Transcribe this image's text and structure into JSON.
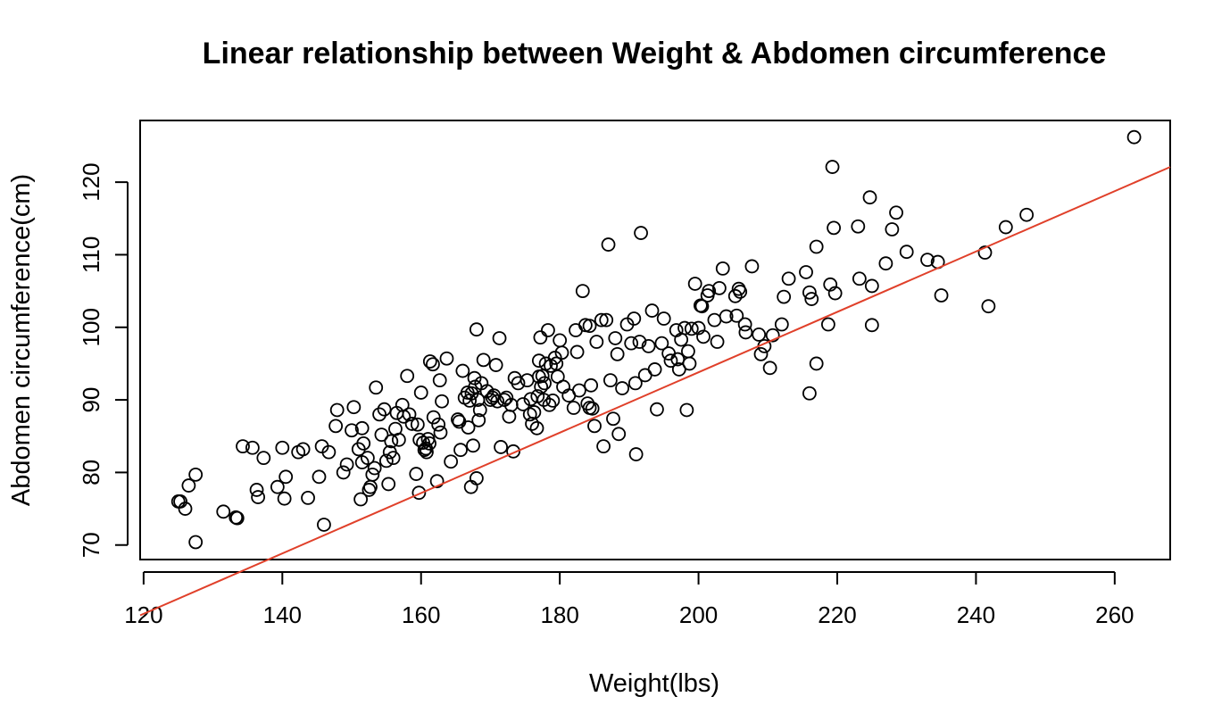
{
  "chart_data": {
    "type": "scatter",
    "title": "Linear relationship between Weight & Abdomen circumference",
    "xlabel": "Weight(lbs)",
    "ylabel": "Abdomen circumference(cm)",
    "xlim": [
      119.5,
      268
    ],
    "ylim": [
      68,
      128.5
    ],
    "xticks": [
      120,
      140,
      160,
      180,
      200,
      220,
      240,
      260
    ],
    "yticks": [
      70,
      80,
      90,
      100,
      110,
      120
    ],
    "grid": false,
    "legend": "none",
    "colors": {
      "points": "#000000",
      "fit_line": "#e0402a"
    },
    "fit_line": {
      "intercept": 10.6,
      "slope": 0.416
    },
    "points": [
      [
        125,
        76
      ],
      [
        125.3,
        76
      ],
      [
        126,
        75
      ],
      [
        126.5,
        78.2
      ],
      [
        127.5,
        79.7
      ],
      [
        127.5,
        70.4
      ],
      [
        131.5,
        74.6
      ],
      [
        133.3,
        73.8
      ],
      [
        133.5,
        73.7
      ],
      [
        134.3,
        83.6
      ],
      [
        135.7,
        83.4
      ],
      [
        136.3,
        77.6
      ],
      [
        136.5,
        76.6
      ],
      [
        137.3,
        82
      ],
      [
        139.3,
        78
      ],
      [
        140,
        83.4
      ],
      [
        140.3,
        76.4
      ],
      [
        140.5,
        79.4
      ],
      [
        142.3,
        82.8
      ],
      [
        143,
        83.2
      ],
      [
        143.7,
        76.5
      ],
      [
        145.3,
        79.4
      ],
      [
        145.7,
        83.6
      ],
      [
        146,
        72.8
      ],
      [
        146.7,
        82.8
      ],
      [
        147.7,
        86.4
      ],
      [
        147.9,
        88.6
      ],
      [
        148.8,
        80
      ],
      [
        149.3,
        81.1
      ],
      [
        150,
        85.8
      ],
      [
        150.3,
        89
      ],
      [
        151,
        83.2
      ],
      [
        151.3,
        76.3
      ],
      [
        151.5,
        81.4
      ],
      [
        151.7,
        84
      ],
      [
        151.5,
        86.1
      ],
      [
        152.3,
        82
      ],
      [
        152.5,
        77.6
      ],
      [
        152.7,
        78
      ],
      [
        153,
        79.7
      ],
      [
        153.3,
        80.6
      ],
      [
        153.5,
        91.7
      ],
      [
        154,
        88
      ],
      [
        154.3,
        85.2
      ],
      [
        154.7,
        88.7
      ],
      [
        155,
        81.6
      ],
      [
        155.3,
        78.4
      ],
      [
        155.5,
        82.8
      ],
      [
        155.7,
        84.3
      ],
      [
        156,
        82
      ],
      [
        156.3,
        86
      ],
      [
        156.5,
        88.2
      ],
      [
        156.8,
        84.5
      ],
      [
        157.3,
        89.3
      ],
      [
        157.5,
        87.7
      ],
      [
        158,
        93.3
      ],
      [
        158.3,
        88
      ],
      [
        158.7,
        86.7
      ],
      [
        159.3,
        79.8
      ],
      [
        159.5,
        86.6
      ],
      [
        159.8,
        84.5
      ],
      [
        159.7,
        77.2
      ],
      [
        160,
        91
      ],
      [
        160.3,
        84.1
      ],
      [
        160.5,
        83.1
      ],
      [
        160.7,
        83.3
      ],
      [
        160.8,
        82.8
      ],
      [
        161,
        84.6
      ],
      [
        161.2,
        84
      ],
      [
        161.3,
        95.3
      ],
      [
        161.7,
        94.9
      ],
      [
        161.8,
        87.6
      ],
      [
        162.3,
        78.8
      ],
      [
        162.5,
        86.6
      ],
      [
        162.7,
        92.7
      ],
      [
        162.8,
        85.5
      ],
      [
        163,
        89.8
      ],
      [
        163.7,
        95.7
      ],
      [
        164.3,
        81.5
      ],
      [
        165.3,
        87.3
      ],
      [
        165.5,
        87
      ],
      [
        165.7,
        83.1
      ],
      [
        166,
        94
      ],
      [
        166.3,
        90.3
      ],
      [
        166.7,
        91
      ],
      [
        166.8,
        86.2
      ],
      [
        167,
        89.9
      ],
      [
        167.2,
        78
      ],
      [
        167.3,
        90.9
      ],
      [
        167.5,
        83.7
      ],
      [
        167.7,
        93
      ],
      [
        167.8,
        91.8
      ],
      [
        168,
        99.7
      ],
      [
        168,
        79.2
      ],
      [
        168.2,
        90
      ],
      [
        168.3,
        87.2
      ],
      [
        168.5,
        88.6
      ],
      [
        168.7,
        92.3
      ],
      [
        169,
        95.5
      ],
      [
        169.5,
        91.2
      ],
      [
        170,
        90
      ],
      [
        170.3,
        90.3
      ],
      [
        170.5,
        90.6
      ],
      [
        170.8,
        94.8
      ],
      [
        171,
        89.8
      ],
      [
        171.3,
        98.5
      ],
      [
        171.5,
        83.5
      ],
      [
        172,
        90
      ],
      [
        172.3,
        90.3
      ],
      [
        172.7,
        87.7
      ],
      [
        173,
        89.3
      ],
      [
        173.3,
        82.9
      ],
      [
        173.5,
        93
      ],
      [
        174,
        92.3
      ],
      [
        174.7,
        89.4
      ],
      [
        175.3,
        92.7
      ],
      [
        175.7,
        88
      ],
      [
        175.8,
        90.1
      ],
      [
        176,
        86.7
      ],
      [
        176.3,
        88.3
      ],
      [
        176.7,
        86.1
      ],
      [
        176.8,
        90.5
      ],
      [
        177,
        93.2
      ],
      [
        177,
        95.4
      ],
      [
        177.2,
        98.6
      ],
      [
        177.3,
        91.8
      ],
      [
        177.5,
        93.3
      ],
      [
        177.7,
        90
      ],
      [
        177.8,
        92.3
      ],
      [
        178,
        95
      ],
      [
        178.3,
        99.6
      ],
      [
        178.5,
        89.3
      ],
      [
        178.7,
        94.7
      ],
      [
        179,
        89.9
      ],
      [
        179.3,
        95.8
      ],
      [
        179.5,
        95
      ],
      [
        179.7,
        93.2
      ],
      [
        180,
        98.2
      ],
      [
        180.3,
        96.5
      ],
      [
        180.5,
        91.8
      ],
      [
        181.3,
        90.6
      ],
      [
        182,
        88.9
      ],
      [
        182.3,
        99.6
      ],
      [
        182.5,
        96.6
      ],
      [
        182.8,
        91.3
      ],
      [
        183.3,
        105
      ],
      [
        183.7,
        100.3
      ],
      [
        184,
        89.5
      ],
      [
        184.3,
        88.9
      ],
      [
        184.5,
        92
      ],
      [
        184.3,
        100.2
      ],
      [
        184.7,
        88.8
      ],
      [
        185,
        86.4
      ],
      [
        185.3,
        98
      ],
      [
        186,
        101
      ],
      [
        186.3,
        83.6
      ],
      [
        186.7,
        101
      ],
      [
        187,
        111.4
      ],
      [
        187.3,
        92.7
      ],
      [
        187.7,
        87.4
      ],
      [
        188,
        98.5
      ],
      [
        188.3,
        96.3
      ],
      [
        188.5,
        85.3
      ],
      [
        189,
        91.6
      ],
      [
        189.7,
        100.4
      ],
      [
        190.3,
        97.8
      ],
      [
        190.7,
        101.2
      ],
      [
        190.9,
        92.3
      ],
      [
        191,
        82.5
      ],
      [
        191.5,
        98
      ],
      [
        191.7,
        113
      ],
      [
        192.3,
        93.4
      ],
      [
        192.8,
        97.4
      ],
      [
        193.3,
        102.3
      ],
      [
        193.7,
        94.2
      ],
      [
        194,
        88.7
      ],
      [
        194.7,
        97.8
      ],
      [
        195,
        101.2
      ],
      [
        195.7,
        96.4
      ],
      [
        196,
        95.4
      ],
      [
        196.8,
        99.6
      ],
      [
        197,
        95.6
      ],
      [
        197.2,
        94.2
      ],
      [
        197.5,
        98.3
      ],
      [
        198,
        99.9
      ],
      [
        198.3,
        88.6
      ],
      [
        198.5,
        96.7
      ],
      [
        198.7,
        95
      ],
      [
        199,
        99.8
      ],
      [
        199.5,
        106
      ],
      [
        200,
        99.9
      ],
      [
        200.3,
        103
      ],
      [
        200.5,
        102.9
      ],
      [
        200.7,
        98.7
      ],
      [
        201.3,
        104.4
      ],
      [
        201.5,
        105
      ],
      [
        202.3,
        101
      ],
      [
        202.7,
        98
      ],
      [
        203,
        105.4
      ],
      [
        203.5,
        108.1
      ],
      [
        204,
        101.5
      ],
      [
        205.3,
        104.3
      ],
      [
        205.5,
        101.6
      ],
      [
        205.8,
        105.3
      ],
      [
        206,
        104.9
      ],
      [
        206.7,
        100.4
      ],
      [
        206.8,
        99.3
      ],
      [
        207.7,
        108.4
      ],
      [
        208.7,
        99
      ],
      [
        209,
        96.3
      ],
      [
        209.5,
        97.4
      ],
      [
        210.3,
        94.4
      ],
      [
        210.7,
        98.9
      ],
      [
        212,
        100.4
      ],
      [
        212.3,
        104.2
      ],
      [
        213,
        106.7
      ],
      [
        215.5,
        107.6
      ],
      [
        216,
        90.9
      ],
      [
        216,
        104.8
      ],
      [
        216.3,
        103.9
      ],
      [
        217,
        95
      ],
      [
        217,
        111.1
      ],
      [
        218.7,
        100.4
      ],
      [
        219,
        105.9
      ],
      [
        219.3,
        122.1
      ],
      [
        219.5,
        113.7
      ],
      [
        219.7,
        104.7
      ],
      [
        223,
        113.9
      ],
      [
        223.2,
        106.7
      ],
      [
        224.7,
        117.9
      ],
      [
        225,
        105.7
      ],
      [
        225,
        100.3
      ],
      [
        227,
        108.8
      ],
      [
        227.9,
        113.5
      ],
      [
        228.5,
        115.8
      ],
      [
        230,
        110.4
      ],
      [
        233,
        109.3
      ],
      [
        234.5,
        109
      ],
      [
        235,
        104.4
      ],
      [
        241.3,
        110.3
      ],
      [
        241.8,
        102.9
      ],
      [
        244.3,
        113.8
      ],
      [
        247.3,
        115.5
      ],
      [
        262.8,
        126.2
      ]
    ]
  }
}
